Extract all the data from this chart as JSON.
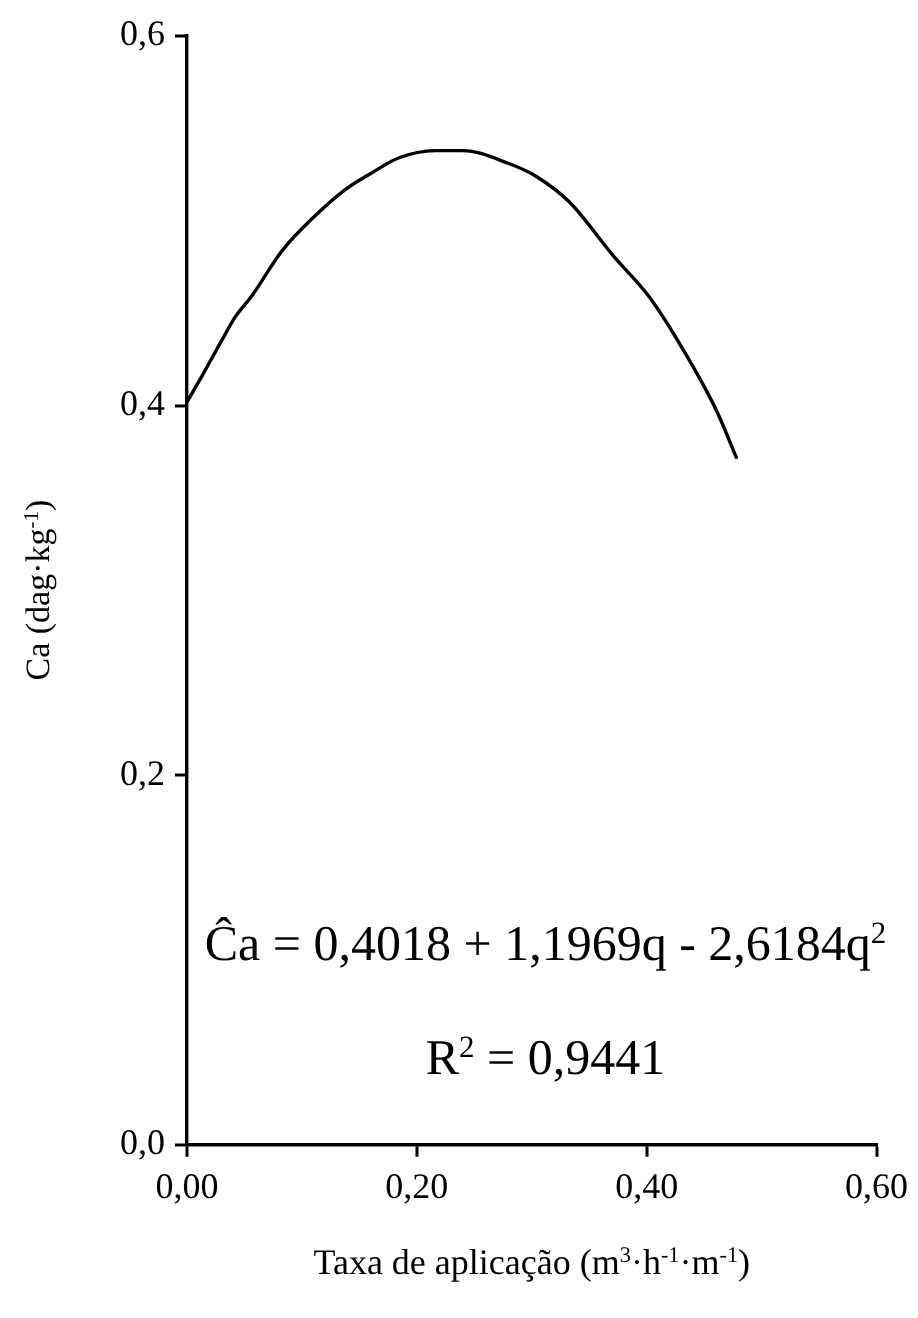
{
  "chart_data": {
    "type": "line",
    "xlabel": "Taxa de aplicação (m$^{3}$·h$^{-1}$·m$^{-1}$)",
    "ylabel": "Ca (dag·kg$^{-1}$)",
    "annotations": [
      "Ĉa = 0,4018 + 1,1969q - 2,6184q$^{2}$",
      "R$^{2}$ = 0,9441"
    ],
    "x": [
      0,
      0.013,
      0.03,
      0.042,
      0.056,
      0.083,
      0.112,
      0.138,
      0.161,
      0.184,
      0.216,
      0.24,
      0.28,
      0.304,
      0.333,
      0.371,
      0.402,
      0.432,
      0.461,
      0.478
    ],
    "series": [
      {
        "color": "#000000",
        "values": [
          0.402,
          0.416,
          0.435,
          0.448,
          0.459,
          0.484,
          0.503,
          0.517,
          0.526,
          0.534,
          0.538,
          0.538,
          0.531,
          0.524,
          0.51,
          0.481,
          0.459,
          0.43,
          0.397,
          0.372
        ]
      }
    ],
    "xlim": [
      0,
      0.6
    ],
    "xticks": [
      {
        "value": 0,
        "label": "0,00"
      },
      {
        "value": 0.2,
        "label": "0,20"
      },
      {
        "value": 0.4,
        "label": "0,40"
      },
      {
        "value": 0.6,
        "label": "0,60"
      }
    ],
    "ylim": [
      0,
      0.6
    ],
    "yticks": [
      {
        "value": 0,
        "label": "0,0"
      },
      {
        "value": 0.2,
        "label": "0,2"
      },
      {
        "value": 0.4,
        "label": "0,4"
      },
      {
        "value": 0.6,
        "label": "0,6"
      }
    ]
  }
}
